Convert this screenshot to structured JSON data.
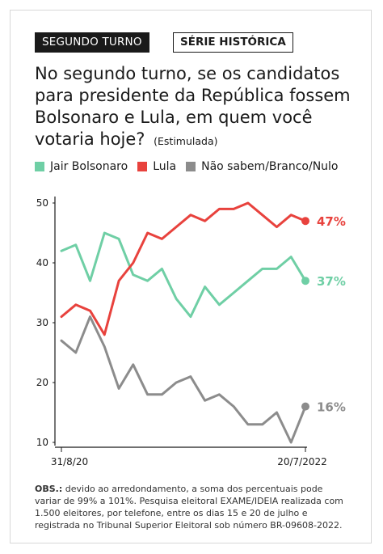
{
  "header": {
    "tag_primary": "SEGUNDO TURNO",
    "tag_secondary": "SÉRIE HISTÓRICA"
  },
  "question": {
    "text": "No segundo turno, se os candidatos para presidente da República fossem Bolsonaro e Lula, em quem você votaria hoje?",
    "note": "(Estimulada)"
  },
  "legend": [
    {
      "label": "Jair Bolsonaro",
      "color": "#6fcfa5"
    },
    {
      "label": "Lula",
      "color": "#e8423d"
    },
    {
      "label": "Não sabem/Branco/Nulo",
      "color": "#8c8c8c"
    }
  ],
  "chart_data": {
    "type": "line",
    "x_start_label": "31/8/20",
    "x_end_label": "20/7/2022",
    "ylim": [
      10,
      50
    ],
    "yticks": [
      10,
      20,
      30,
      40,
      50
    ],
    "grid": false,
    "series": [
      {
        "name": "Jair Bolsonaro",
        "color": "#6fcfa5",
        "values": [
          42,
          43,
          37,
          45,
          44,
          38,
          37,
          39,
          34,
          31,
          36,
          33,
          35,
          37,
          39,
          39,
          41,
          37
        ],
        "end_label": "37%"
      },
      {
        "name": "Lula",
        "color": "#e8423d",
        "values": [
          31,
          33,
          32,
          28,
          37,
          40,
          45,
          44,
          46,
          48,
          47,
          49,
          49,
          50,
          48,
          46,
          48,
          47
        ],
        "end_label": "47%"
      },
      {
        "name": "Não sabem/Branco/Nulo",
        "color": "#8c8c8c",
        "values": [
          27,
          25,
          31,
          26,
          19,
          23,
          18,
          18,
          20,
          21,
          17,
          18,
          16,
          13,
          13,
          15,
          10,
          16
        ],
        "end_label": "16%"
      }
    ]
  },
  "obs": {
    "label": "OBS.:",
    "text": "devido ao arredondamento, a soma dos percentuais pode variar de 99% a 101%. Pesquisa eleitoral EXAME/IDEIA realizada com 1.500 eleitores, por telefone, entre os dias 15 e 20 de julho e registrada no Tribunal Superior Eleitoral sob número BR-09608-2022."
  }
}
